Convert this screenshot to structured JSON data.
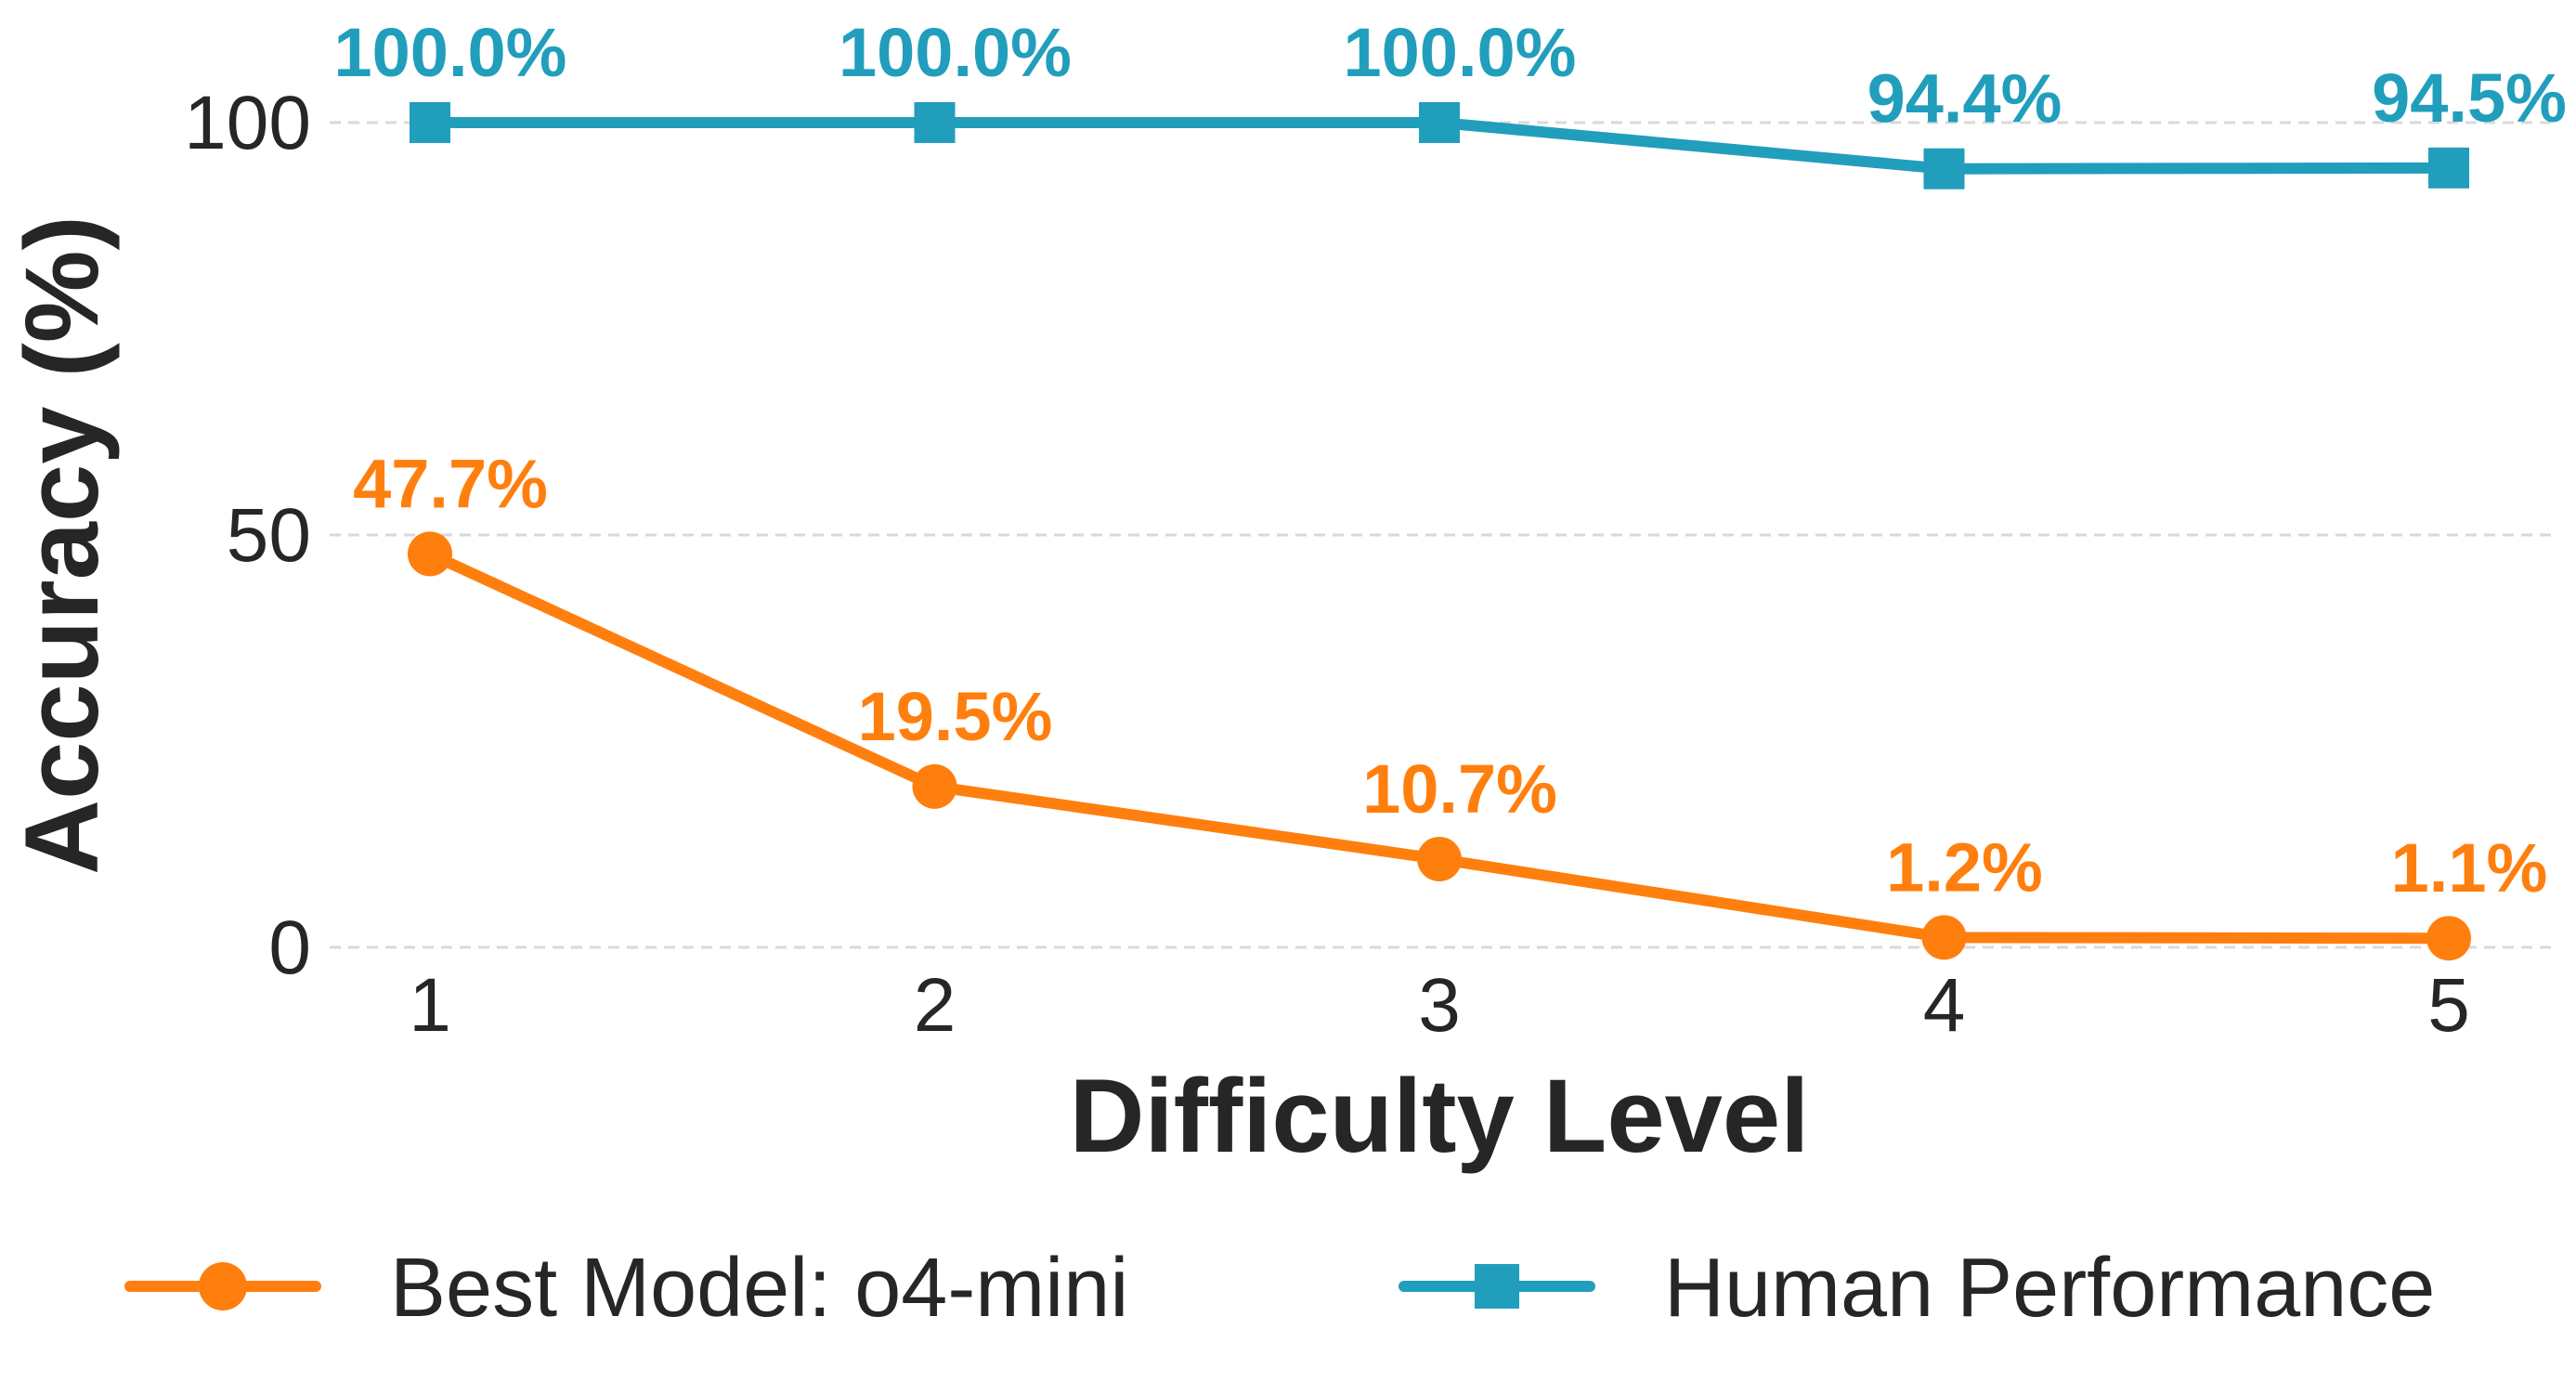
{
  "chart_data": {
    "type": "line",
    "xlabel": "Difficulty Level",
    "ylabel": "Accuracy (%)",
    "categories": [
      "1",
      "2",
      "3",
      "4",
      "5"
    ],
    "x": [
      1,
      2,
      3,
      4,
      5
    ],
    "ylim": [
      0,
      100
    ],
    "yticks": [
      0,
      50,
      100
    ],
    "grid": "horizontal",
    "legend_position": "bottom",
    "series": [
      {
        "name": "Best Model: o4-mini",
        "values": [
          47.7,
          19.5,
          10.7,
          1.2,
          1.1
        ],
        "labels": [
          "47.7%",
          "19.5%",
          "10.7%",
          "1.2%",
          "1.1%"
        ],
        "color": "#ff7f0e",
        "marker": "circle"
      },
      {
        "name": "Human Performance",
        "values": [
          100.0,
          100.0,
          100.0,
          94.4,
          94.5
        ],
        "labels": [
          "100.0%",
          "100.0%",
          "100.0%",
          "94.4%",
          "94.5%"
        ],
        "color": "#219ebc",
        "marker": "square"
      }
    ]
  }
}
